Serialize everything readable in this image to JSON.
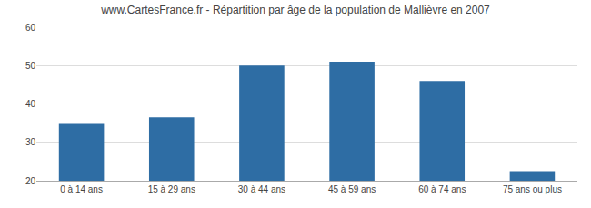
{
  "chart_data": {
    "type": "bar",
    "title": "www.CartesFrance.fr - Répartition par âge de la population de Mallièvre en 2007",
    "categories": [
      "0 à 14 ans",
      "15 à 29 ans",
      "30 à 44 ans",
      "45 à 59 ans",
      "60 à 74 ans",
      "75 ans ou plus"
    ],
    "values": [
      35,
      36.5,
      50,
      51,
      46,
      22.5
    ],
    "color": "#2e6da4",
    "ylim": [
      20,
      60
    ],
    "yticks": [
      20,
      30,
      40,
      50,
      60
    ],
    "grid": true
  }
}
